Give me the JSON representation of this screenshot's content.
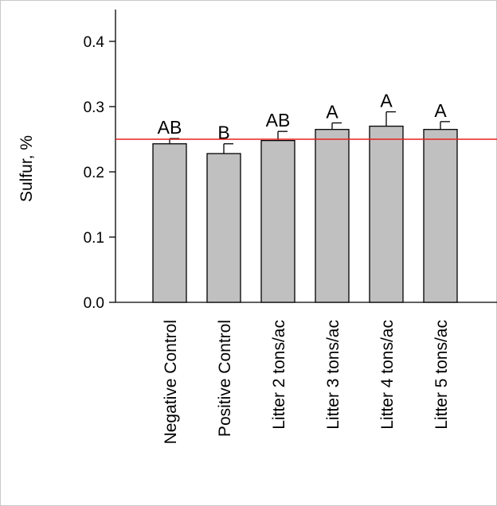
{
  "chart_data": {
    "type": "bar",
    "title": "",
    "xlabel": "",
    "ylabel": "Sulfur, %",
    "ylim": [
      0,
      0.45
    ],
    "yticks": [
      "0.0",
      "0.1",
      "0.2",
      "0.3",
      "0.4"
    ],
    "ytick_values": [
      0,
      0.1,
      0.2,
      0.3,
      0.4
    ],
    "categories": [
      "Negative Control",
      "Positive Control",
      "Litter 2 tons/ac",
      "Litter 3 tons/ac",
      "Litter 4 tons/ac",
      "Litter 5 tons/ac"
    ],
    "values": [
      0.243,
      0.228,
      0.248,
      0.265,
      0.27,
      0.265
    ],
    "errors": [
      0.008,
      0.015,
      0.014,
      0.01,
      0.022,
      0.012
    ],
    "significance_letters": [
      "AB",
      "B",
      "AB",
      "A",
      "A",
      "A"
    ],
    "reference_line": {
      "value": 0.25,
      "color": "#e8211f"
    },
    "bar_color": "#c0c0c0",
    "grid": false,
    "legend": "none"
  }
}
